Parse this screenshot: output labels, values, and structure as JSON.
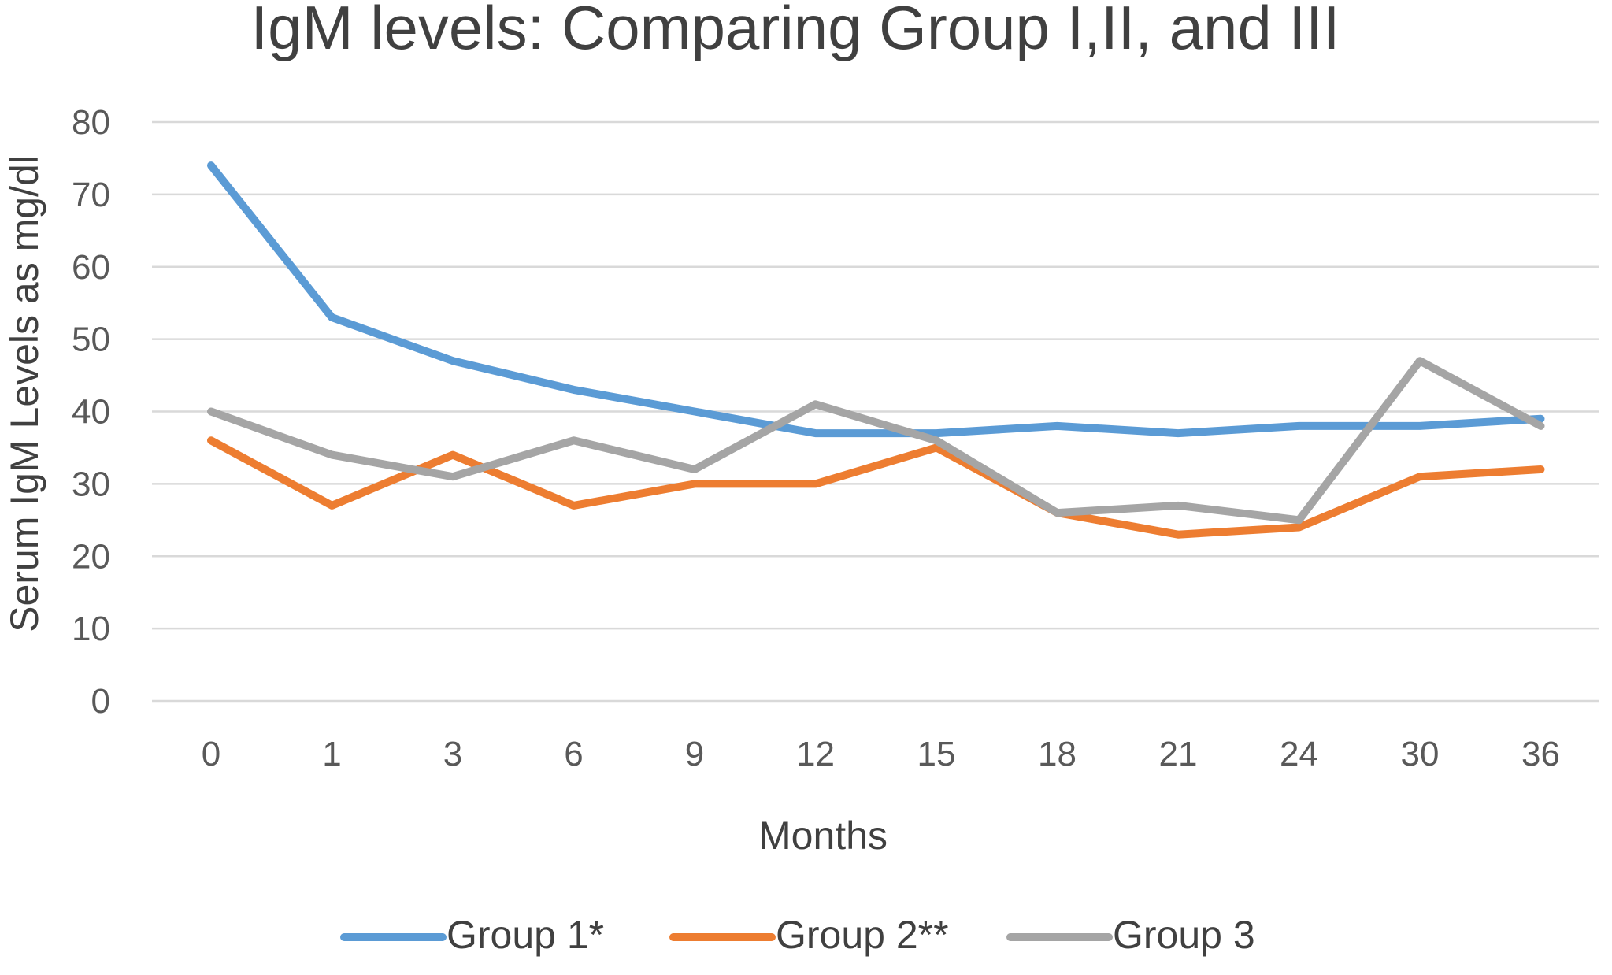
{
  "chart_data": {
    "type": "line",
    "title": "IgM levels: Comparing Group I,II, and III",
    "xlabel": "Months",
    "ylabel": "Serum IgM Levels as mg/dl",
    "categories": [
      "0",
      "1",
      "3",
      "6",
      "9",
      "12",
      "15",
      "18",
      "21",
      "24",
      "30",
      "36"
    ],
    "ylim": [
      0,
      80
    ],
    "yticks": [
      0,
      10,
      20,
      30,
      40,
      50,
      60,
      70,
      80
    ],
    "grid": true,
    "legend_position": "bottom",
    "series": [
      {
        "name": "Group 1*",
        "color": "#5b9bd5",
        "values": [
          74,
          53,
          47,
          43,
          40,
          37,
          37,
          38,
          37,
          38,
          38,
          39
        ]
      },
      {
        "name": "Group 2**",
        "color": "#ed7d31",
        "values": [
          36,
          27,
          34,
          27,
          30,
          30,
          35,
          26,
          23,
          24,
          31,
          32
        ]
      },
      {
        "name": "Group 3",
        "color": "#a5a5a5",
        "values": [
          40,
          34,
          31,
          36,
          32,
          41,
          36,
          26,
          27,
          25,
          47,
          38
        ]
      }
    ]
  }
}
